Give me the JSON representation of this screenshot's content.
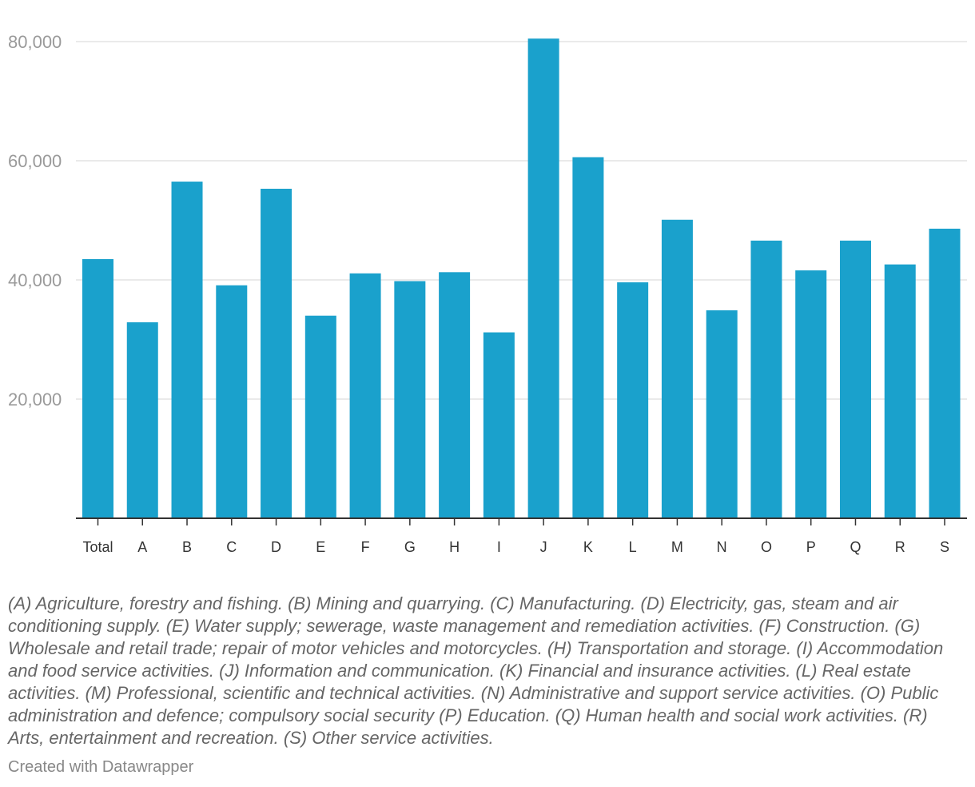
{
  "chart_data": {
    "type": "bar",
    "categories": [
      "Total",
      "A",
      "B",
      "C",
      "D",
      "E",
      "F",
      "G",
      "H",
      "I",
      "J",
      "K",
      "L",
      "M",
      "N",
      "O",
      "P",
      "Q",
      "R",
      "S"
    ],
    "values": [
      43500,
      32900,
      56500,
      39100,
      55300,
      34000,
      41100,
      39800,
      41300,
      31200,
      80500,
      60600,
      39600,
      50100,
      34900,
      46600,
      41600,
      46600,
      42600,
      48600
    ],
    "ylim": [
      0,
      80000
    ],
    "yticks": [
      20000,
      40000,
      60000,
      80000
    ],
    "ytick_labels": [
      "20,000",
      "40,000",
      "60,000",
      "80,000"
    ],
    "title": "",
    "xlabel": "",
    "ylabel": "",
    "grid": true,
    "bar_color": "#1aa1cc"
  },
  "notes": "(A) Agriculture, forestry and fishing. (B) Mining and quarrying. (C) Manufacturing. (D) Electricity, gas, steam and air conditioning supply. (E) Water supply; sewerage, waste management and remediation activities. (F) Construction. (G) Wholesale and retail trade; repair of motor vehicles and motorcycles. (H) Transportation and storage. (I) Accommodation and food service activities. (J) Information and communication. (K) Financial and insurance activities. (L) Real estate activities. (M) Professional, scientific and technical activities. (N) Administrative and support service activities. (O) Public administration and defence; compulsory social security (P) Education. (Q) Human health and social work activities. (R) Arts, entertainment and recreation. (S) Other service activities.",
  "credit": "Created with Datawrapper"
}
